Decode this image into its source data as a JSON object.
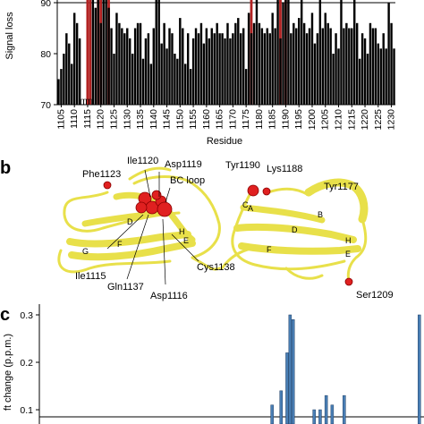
{
  "panels": {
    "b": "b",
    "c": "c"
  },
  "chart_data": [
    {
      "type": "bar",
      "ylabel": "Signal loss",
      "xlabel": "Residue",
      "ylim": [
        70,
        92
      ],
      "yticks": [
        "70",
        "80",
        "90"
      ],
      "xtick_labels": [
        "1105",
        "1110",
        "1115",
        "1120",
        "1125",
        "1130",
        "1135",
        "1140",
        "1145",
        "1150",
        "1155",
        "1160",
        "1165",
        "1170",
        "1175",
        "1180",
        "1185",
        "1190",
        "1195",
        "1200",
        "1205",
        "1210",
        "1215",
        "1220",
        "1225",
        "1230"
      ],
      "x": [
        1104,
        1105,
        1106,
        1107,
        1108,
        1109,
        1110,
        1111,
        1112,
        1113,
        1114,
        1115,
        1116,
        1117,
        1118,
        1119,
        1120,
        1121,
        1122,
        1123,
        1124,
        1125,
        1126,
        1127,
        1128,
        1129,
        1130,
        1131,
        1132,
        1133,
        1134,
        1135,
        1136,
        1137,
        1138,
        1139,
        1140,
        1141,
        1142,
        1143,
        1144,
        1145,
        1146,
        1147,
        1148,
        1149,
        1150,
        1151,
        1152,
        1153,
        1154,
        1155,
        1156,
        1157,
        1158,
        1159,
        1160,
        1161,
        1162,
        1163,
        1164,
        1165,
        1166,
        1167,
        1168,
        1169,
        1170,
        1171,
        1172,
        1173,
        1174,
        1175,
        1176,
        1177,
        1178,
        1179,
        1180,
        1181,
        1182,
        1183,
        1184,
        1185,
        1186,
        1187,
        1188,
        1189,
        1190,
        1191,
        1192,
        1193,
        1194,
        1195,
        1196,
        1197,
        1198,
        1199,
        1200,
        1201,
        1202,
        1203,
        1204,
        1205,
        1206,
        1207,
        1208,
        1209,
        1210,
        1211,
        1212,
        1213,
        1214,
        1215,
        1216,
        1217,
        1218,
        1219,
        1220,
        1221,
        1222,
        1223,
        1224,
        1225,
        1226,
        1227,
        1228,
        1229,
        1230,
        1231
      ],
      "values": [
        75,
        77,
        80,
        84,
        82,
        78,
        88,
        86,
        83,
        null,
        null,
        null,
        null,
        92,
        89,
        92,
        86,
        92,
        92,
        89,
        85,
        80,
        88,
        86,
        85,
        84,
        85,
        83,
        80,
        85,
        86,
        86,
        79,
        83,
        84,
        78,
        85,
        92,
        92,
        82,
        86,
        81,
        85,
        84,
        80,
        79,
        87,
        85,
        78,
        84,
        77,
        83,
        85,
        84,
        86,
        82,
        85,
        83,
        85,
        84,
        86,
        84,
        84,
        83,
        86,
        83,
        84,
        86,
        87,
        84,
        85,
        77,
        88,
        84,
        86,
        92,
        86,
        85,
        84,
        85,
        84,
        88,
        85,
        91,
        83,
        90,
        92,
        92,
        84,
        86,
        85,
        87,
        91,
        86,
        84,
        85,
        88,
        82,
        84,
        92,
        85,
        88,
        86,
        85,
        80,
        84,
        81,
        92,
        85,
        86,
        85,
        85,
        91,
        86,
        79,
        84,
        83,
        80,
        86,
        85,
        85,
        82,
        81,
        84,
        81,
        90,
        86,
        81
      ],
      "highlighted_residues": [
        1115,
        1116,
        1119,
        1120,
        1123,
        1137,
        1138,
        1177,
        1188,
        1190,
        1209
      ],
      "highlight_color": "#b22222",
      "bar_color": "#000000"
    },
    {
      "type": "bar",
      "ylabel": "ft change (p.p.m.)",
      "yticks": [
        "0.1",
        "0.2",
        "0.3"
      ],
      "ylim": [
        0.07,
        0.31
      ],
      "threshold": 0.085,
      "bar_color": "#4a7fb5",
      "values": [
        {
          "x": 1181,
          "v": 0.11
        },
        {
          "x": 1184,
          "v": 0.14
        },
        {
          "x": 1186,
          "v": 0.22
        },
        {
          "x": 1187,
          "v": 0.3
        },
        {
          "x": 1188,
          "v": 0.29
        },
        {
          "x": 1195,
          "v": 0.1
        },
        {
          "x": 1197,
          "v": 0.1
        },
        {
          "x": 1199,
          "v": 0.13
        },
        {
          "x": 1201,
          "v": 0.11
        },
        {
          "x": 1205,
          "v": 0.13
        },
        {
          "x": 1230,
          "v": 0.3
        }
      ]
    }
  ],
  "structure": {
    "left_labels": [
      {
        "text": "Phe1123"
      },
      {
        "text": "Ile1120"
      },
      {
        "text": "Asp1119"
      },
      {
        "text": "BC loop"
      },
      {
        "text": "Ile1115"
      },
      {
        "text": "Gln1137"
      },
      {
        "text": "Asp1116"
      },
      {
        "text": "Cys1138"
      }
    ],
    "right_labels": [
      {
        "text": "Tyr1190"
      },
      {
        "text": "Lys1188"
      },
      {
        "text": "Tyr1177"
      },
      {
        "text": "Ser1209"
      }
    ],
    "strand_labels_left": [
      "D",
      "F",
      "G",
      "H",
      "E"
    ],
    "strand_labels_right": [
      "C",
      "A",
      "B",
      "D",
      "F",
      "H",
      "E"
    ],
    "ribbon_color": "#e8e04a",
    "sphere_color": "#e02020"
  }
}
